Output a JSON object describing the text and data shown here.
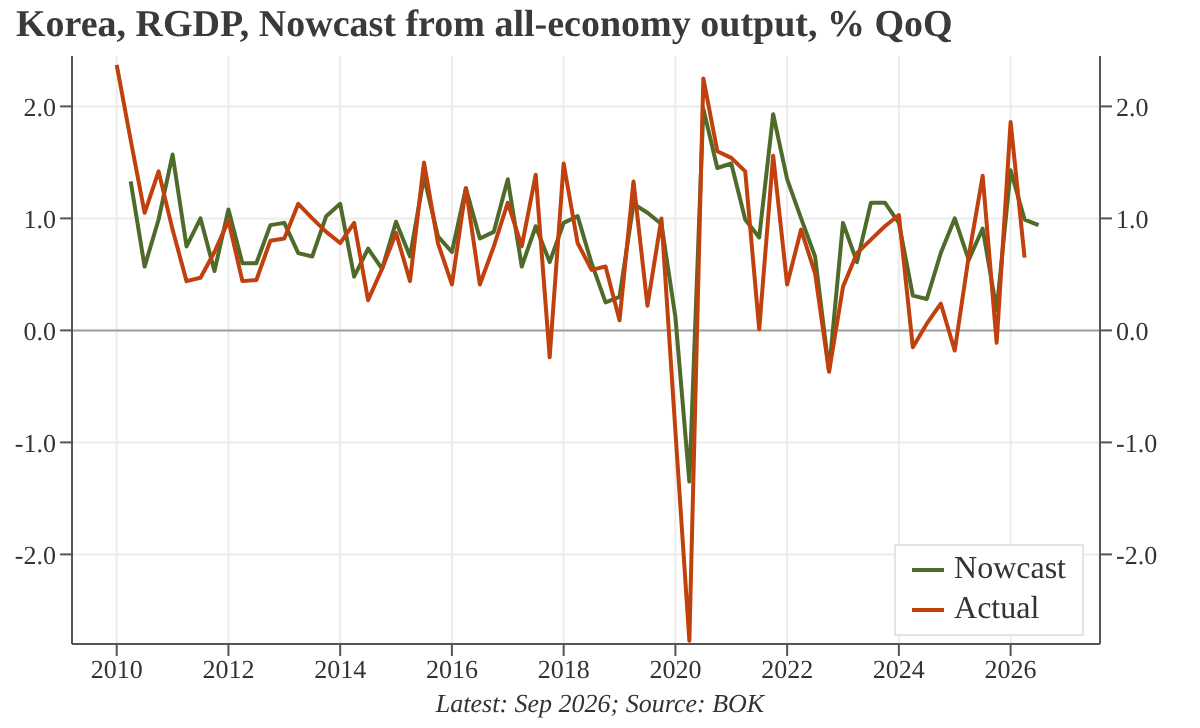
{
  "chart_data": {
    "type": "line",
    "title": "Korea, RGDP, Nowcast from all-economy output, % QoQ",
    "annotations": [
      "Latest: Sep 2026; Source: BOK"
    ],
    "x": [
      2010,
      2010.25,
      2010.5,
      2010.75,
      2011,
      2011.25,
      2011.5,
      2011.75,
      2012,
      2012.25,
      2012.5,
      2012.75,
      2013,
      2013.25,
      2013.5,
      2013.75,
      2014,
      2014.25,
      2014.5,
      2014.75,
      2015,
      2015.25,
      2015.5,
      2015.75,
      2016,
      2016.25,
      2016.5,
      2016.75,
      2017,
      2017.25,
      2017.5,
      2017.75,
      2018,
      2018.25,
      2018.5,
      2018.75,
      2019,
      2019.25,
      2019.5,
      2019.75,
      2020,
      2020.25,
      2020.5,
      2020.75,
      2021,
      2021.25,
      2021.5,
      2021.75,
      2022,
      2022.25,
      2022.5,
      2022.75,
      2023,
      2023.25,
      2023.5,
      2023.75,
      2024,
      2024.25,
      2024.5,
      2024.75,
      2025,
      2025.25,
      2025.5,
      2025.75,
      2026,
      2026.25,
      2026.5
    ],
    "series": [
      {
        "name": "Nowcast",
        "color": "#4f6b2a",
        "values": [
          null,
          1.33,
          0.57,
          0.99,
          1.57,
          0.75,
          1.0,
          0.53,
          1.08,
          0.6,
          0.6,
          0.94,
          0.96,
          0.69,
          0.66,
          1.02,
          1.13,
          0.48,
          0.73,
          0.55,
          0.97,
          0.66,
          1.37,
          0.84,
          0.7,
          1.27,
          0.82,
          0.88,
          1.35,
          0.57,
          0.93,
          0.61,
          0.96,
          1.02,
          0.6,
          0.25,
          0.3,
          1.13,
          1.05,
          0.95,
          0.12,
          -1.35,
          1.98,
          1.45,
          1.49,
          0.99,
          0.83,
          1.93,
          1.35,
          1.0,
          0.66,
          -0.36,
          0.96,
          0.61,
          1.14,
          1.14,
          0.96,
          0.31,
          0.28,
          0.69,
          1.0,
          0.63,
          0.91,
          0.18,
          1.43,
          0.99,
          0.94
        ]
      },
      {
        "name": "Actual",
        "color": "#c0400e",
        "values": [
          2.37,
          1.7,
          1.05,
          1.42,
          0.9,
          0.44,
          0.47,
          0.7,
          0.98,
          0.44,
          0.45,
          0.8,
          0.82,
          1.13,
          1.0,
          0.88,
          0.78,
          0.96,
          0.27,
          0.55,
          0.87,
          0.44,
          1.5,
          0.78,
          0.41,
          1.27,
          0.41,
          0.75,
          1.14,
          0.75,
          1.39,
          -0.24,
          1.49,
          0.78,
          0.54,
          0.57,
          0.09,
          1.33,
          0.22,
          1.0,
          -0.9,
          -2.77,
          2.25,
          1.6,
          1.54,
          1.42,
          0.01,
          1.56,
          0.41,
          0.9,
          0.51,
          -0.37,
          0.39,
          0.69,
          0.81,
          0.93,
          1.03,
          -0.15,
          0.06,
          0.24,
          -0.18,
          0.66,
          1.38,
          -0.11,
          1.86,
          0.65,
          null
        ]
      }
    ],
    "xlim": [
      2009.2,
      2027.6
    ],
    "xticks": [
      2010,
      2012,
      2014,
      2016,
      2018,
      2020,
      2022,
      2024,
      2026
    ],
    "ylim": [
      -2.8,
      2.45
    ],
    "yticks": [
      {
        "value": -2,
        "label": "-2.0"
      },
      {
        "value": -1,
        "label": "-1.0"
      },
      {
        "value": 0,
        "label": "0.0"
      },
      {
        "value": 1,
        "label": "1.0"
      },
      {
        "value": 2,
        "label": "2.0"
      }
    ],
    "y2lim": [
      -2.8,
      2.45
    ],
    "y2ticks": [
      {
        "value": -2,
        "label": "-2.0"
      },
      {
        "value": -1,
        "label": "-1.0"
      },
      {
        "value": 0,
        "label": "0.0"
      },
      {
        "value": 1,
        "label": "1.0"
      },
      {
        "value": 2,
        "label": "2.0"
      }
    ],
    "ref_lines": [
      {
        "axis": "y",
        "value": 0,
        "color": "#a0a0a0"
      }
    ],
    "grid": true,
    "legend": "bottom right",
    "marker": "none",
    "line_style": "solid"
  }
}
